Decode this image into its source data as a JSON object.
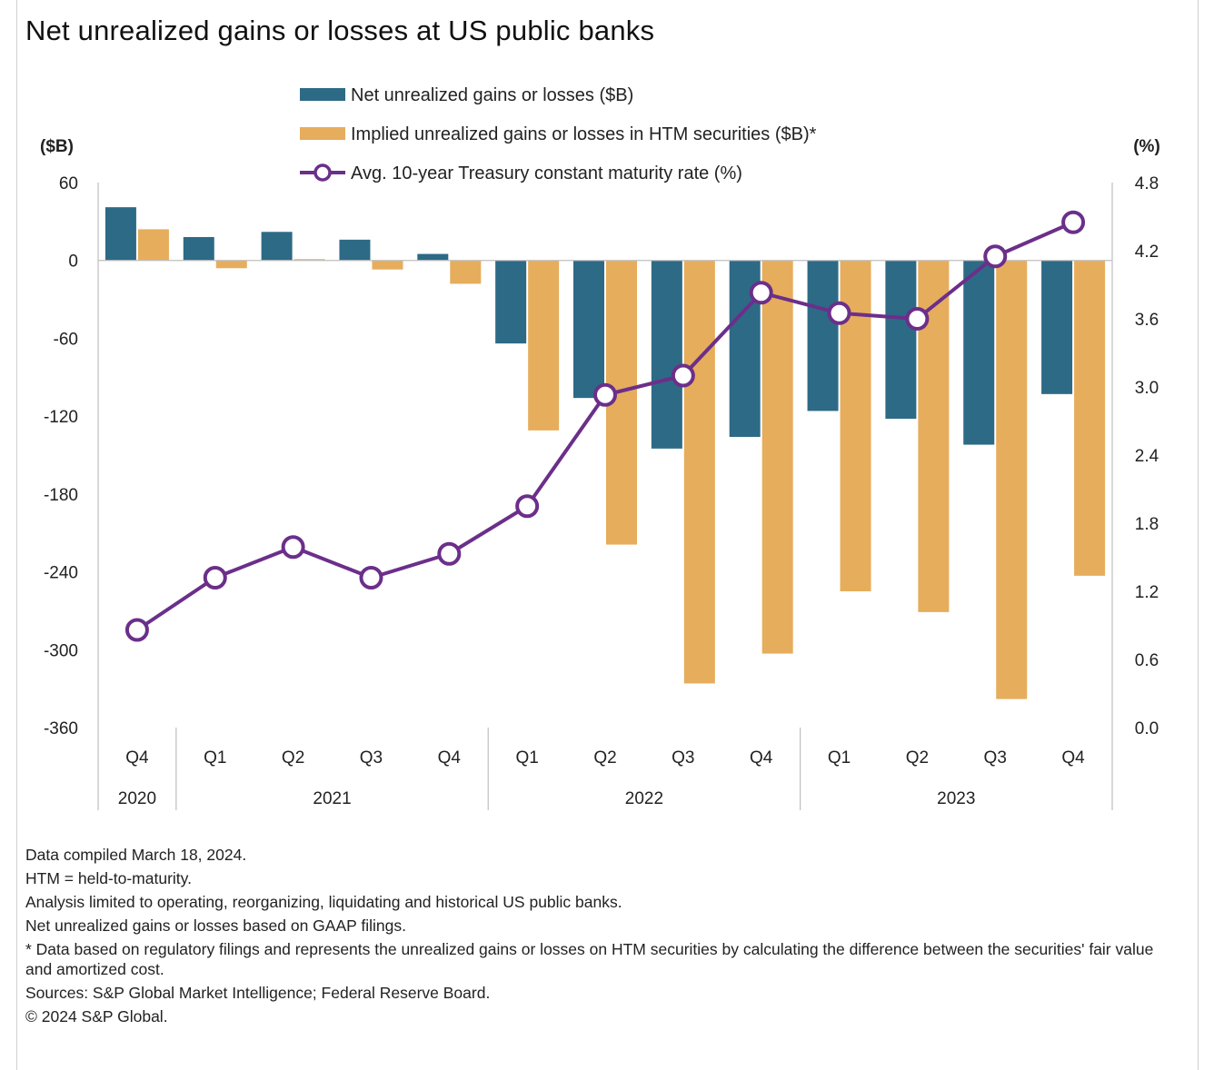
{
  "title": "Net unrealized gains or losses at US public banks",
  "chart_data": {
    "type": "bar",
    "categories": [
      "Q4",
      "Q1",
      "Q2",
      "Q3",
      "Q4",
      "Q1",
      "Q2",
      "Q3",
      "Q4",
      "Q1",
      "Q2",
      "Q3",
      "Q4"
    ],
    "year_groups": [
      {
        "label": "2020",
        "start": 0,
        "end": 0
      },
      {
        "label": "2021",
        "start": 1,
        "end": 4
      },
      {
        "label": "2022",
        "start": 5,
        "end": 8
      },
      {
        "label": "2023",
        "start": 9,
        "end": 12
      }
    ],
    "series": [
      {
        "name": "Net unrealized gains or losses ($B)",
        "kind": "bar",
        "axis": "left",
        "color": "#2d6a86",
        "values": [
          41,
          18,
          22,
          16,
          5,
          -64,
          -106,
          -145,
          -136,
          -116,
          -122,
          -142,
          -103
        ]
      },
      {
        "name": "Implied unrealized gains or losses in HTM securities ($B)*",
        "kind": "bar",
        "axis": "left",
        "color": "#e6ad5c",
        "values": [
          24,
          -6,
          1,
          -7,
          -18,
          -131,
          -219,
          -326,
          -303,
          -255,
          -271,
          -338,
          -243
        ]
      },
      {
        "name": "Avg. 10-year Treasury constant maturity rate (%)",
        "kind": "line",
        "axis": "right",
        "color": "#6b2f8a",
        "values": [
          0.86,
          1.32,
          1.59,
          1.32,
          1.53,
          1.95,
          2.93,
          3.1,
          3.83,
          3.65,
          3.6,
          4.15,
          4.45
        ]
      }
    ],
    "left_axis": {
      "label": "($B)",
      "min": -360,
      "max": 60,
      "ticks": [
        60,
        0,
        -60,
        -120,
        -180,
        -240,
        -300,
        -360
      ]
    },
    "right_axis": {
      "label": "(%)",
      "min": 0.0,
      "max": 4.8,
      "ticks": [
        "4.8",
        "4.2",
        "3.6",
        "3.0",
        "2.4",
        "1.8",
        "1.2",
        "0.6",
        "0.0"
      ]
    },
    "legend_position": "top",
    "grid": false
  },
  "notes": [
    "Data compiled March 18, 2024.",
    "HTM = held-to-maturity.",
    "Analysis limited to operating, reorganizing, liquidating and historical US public banks.",
    "Net unrealized gains or losses based on GAAP filings.",
    "* Data based on regulatory filings and represents the unrealized gains or losses on HTM securities by calculating the difference between the securities' fair value and amortized cost.",
    "Sources: S&P Global Market Intelligence; Federal Reserve Board.",
    "© 2024 S&P Global."
  ]
}
